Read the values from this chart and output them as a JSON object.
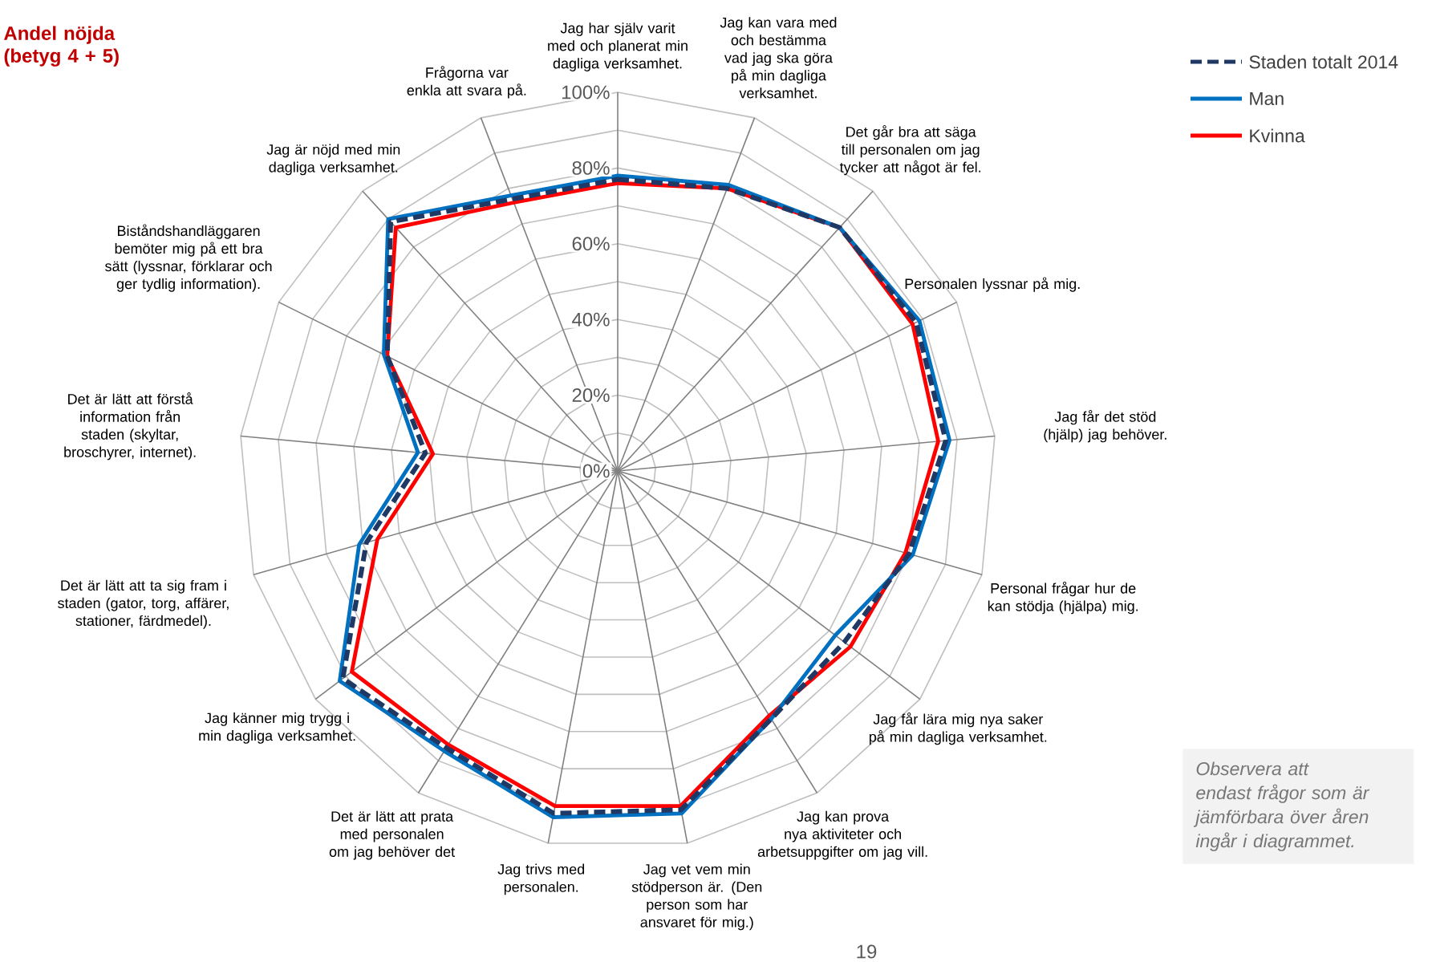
{
  "chart_data": {
    "type": "radar",
    "title": "Andel nöjda (betyg 4 + 5)",
    "categories": [
      "Jag har själv varit med och planerat min dagliga verksamhet.",
      "Jag kan vara med och bestämma vad jag ska göra på min dagliga verksamhet.",
      "Det går bra att säga till personalen om jag tycker att något är fel.",
      "Personalen lyssnar på mig.",
      "Jag får det stöd (hjälp) jag behöver.",
      "Personal frågar hur de kan stödja (hjälpa) mig.",
      "Jag får lära mig nya saker på min dagliga verksamhet.",
      "Jag kan prova nya aktiviteter och arbetsuppgifter om jag vill.",
      "Jag vet vem min stödperson är. (Den person som har ansvaret för mig.)",
      "Jag trivs med personalen.",
      "Det är lätt att prata med personalen om jag behöver det",
      "Jag känner mig trygg i min dagliga verksamhet.",
      "Det är lätt att ta sig fram i staden (gator, torg, affärer, stationer, färdmedel).",
      "Det är lätt att förstå information från staden (skyltar, broschyrer, internet).",
      "Biståndshandläggaren bemöter mig på ett bra sätt (lyssnar, förklarar och ger tydlig information).",
      "Jag är nöjd med min dagliga verksamhet.",
      "Frågorna var enkla att svara på."
    ],
    "series": [
      {
        "name": "Staden totalt 2014",
        "color": "#1f3864",
        "line_style": "dashed",
        "values": [
          77,
          80,
          87,
          88,
          87,
          80,
          75,
          77,
          91,
          92,
          86,
          91,
          69,
          51,
          68,
          89,
          77
        ]
      },
      {
        "name": "Man",
        "color": "#0070c0",
        "values": [
          78,
          81,
          87,
          89,
          88,
          81,
          72,
          77,
          92,
          93,
          87,
          92,
          71,
          53,
          69,
          90,
          78
        ]
      },
      {
        "name": "Kvinna",
        "color": "#ff0000",
        "values": [
          76,
          80,
          87,
          87,
          85,
          79,
          77,
          76,
          90,
          90,
          85,
          88,
          66,
          49,
          68,
          87,
          76
        ]
      }
    ],
    "ylim": [
      0,
      100
    ],
    "yticks": [
      {
        "value": 0,
        "label": "0%"
      },
      {
        "value": 20,
        "label": "20%"
      },
      {
        "value": 40,
        "label": "40%"
      },
      {
        "value": 60,
        "label": "60%"
      },
      {
        "value": 80,
        "label": "80%"
      },
      {
        "value": 100,
        "label": "100%"
      }
    ],
    "grid": true,
    "legend": "top right",
    "marker": "none",
    "line_style": "solid",
    "annotations": [
      "Observera att endast frågor som är jämförbara över åren ingår i diagrammet.",
      "19"
    ]
  }
}
